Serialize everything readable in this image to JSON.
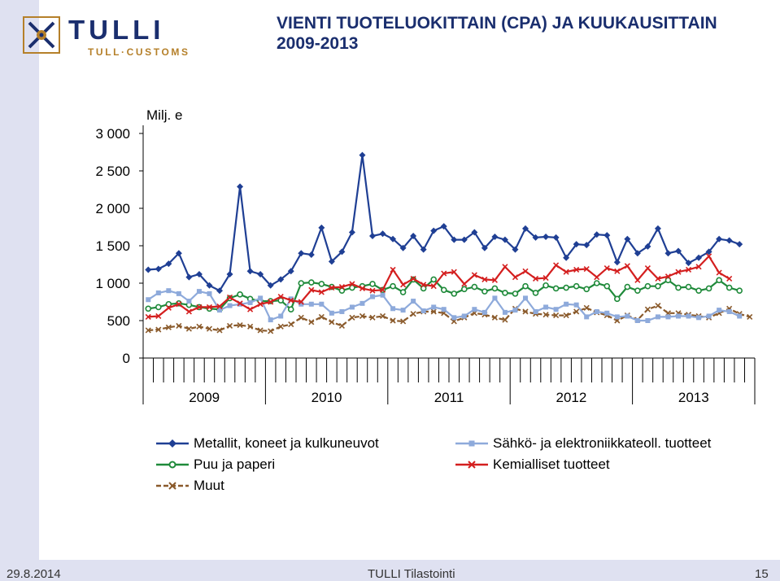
{
  "header": {
    "title": "VIENTI TUOTELUOKITTAIN (CPA) JA KUUKAUSITTAIN 2009-2013",
    "logo_main": "TULLI",
    "logo_sub": "TULL·CUSTOMS"
  },
  "footer": {
    "date": "29.8.2014",
    "center": "TULLI Tilastointi",
    "page": "15"
  },
  "colors": {
    "sidebar": "#dfe1f1",
    "brand_blue": "#1a2e6e",
    "brand_gold": "#b5802a"
  },
  "chart_data": {
    "type": "line",
    "unit_label": "Milj. e",
    "ylim": [
      0,
      3000
    ],
    "yticks": [
      {
        "value": 0,
        "label": "0"
      },
      {
        "value": 500,
        "label": "500"
      },
      {
        "value": 1000,
        "label": "1 000"
      },
      {
        "value": 1500,
        "label": "1 500"
      },
      {
        "value": 2000,
        "label": "2 000"
      },
      {
        "value": 2500,
        "label": "2 500"
      },
      {
        "value": 3000,
        "label": "3 000"
      }
    ],
    "grid": false,
    "legend_position": "bottom",
    "months": 60,
    "x_year_labels": [
      "2009",
      "2010",
      "2011",
      "2012",
      "2013"
    ],
    "series": [
      {
        "name": "Metallit, koneet ja kulkuneuvot",
        "color": "#1f3f94",
        "marker": "diamond",
        "dash": "",
        "values": [
          1180,
          1190,
          1260,
          1400,
          1080,
          1120,
          970,
          900,
          1120,
          2290,
          1160,
          1120,
          970,
          1050,
          1160,
          1400,
          1380,
          1740,
          1290,
          1420,
          1680,
          2710,
          1630,
          1660,
          1590,
          1470,
          1630,
          1450,
          1700,
          1760,
          1580,
          1580,
          1680,
          1470,
          1620,
          1580,
          1450,
          1730,
          1610,
          1620,
          1610,
          1340,
          1520,
          1510,
          1650,
          1640,
          1280,
          1590,
          1400,
          1490,
          1730,
          1400,
          1430,
          1270,
          1340,
          1420,
          1590,
          1570,
          1520,
          0
        ]
      },
      {
        "name": "Puu ja paperi",
        "color": "#1f8a3a",
        "marker": "circle",
        "dash": "",
        "values": [
          660,
          680,
          720,
          730,
          710,
          680,
          660,
          650,
          800,
          850,
          790,
          760,
          760,
          770,
          650,
          1000,
          1010,
          990,
          950,
          900,
          940,
          960,
          990,
          910,
          960,
          880,
          1050,
          930,
          1050,
          910,
          860,
          920,
          950,
          890,
          930,
          870,
          860,
          960,
          870,
          970,
          930,
          940,
          960,
          920,
          1000,
          960,
          790,
          950,
          900,
          960,
          960,
          1040,
          940,
          950,
          900,
          930,
          1040,
          940,
          900,
          0
        ]
      },
      {
        "name": "Muut",
        "color": "#8a5a2b",
        "marker": "x",
        "dash": "6,3",
        "values": [
          370,
          380,
          410,
          430,
          390,
          420,
          390,
          370,
          430,
          440,
          420,
          370,
          360,
          420,
          450,
          540,
          480,
          550,
          480,
          430,
          540,
          560,
          540,
          560,
          500,
          490,
          590,
          620,
          620,
          600,
          490,
          540,
          600,
          580,
          540,
          510,
          660,
          620,
          590,
          580,
          570,
          570,
          620,
          670,
          610,
          570,
          500,
          570,
          510,
          650,
          700,
          600,
          600,
          580,
          560,
          540,
          600,
          660,
          590,
          550
        ]
      },
      {
        "name": "Sähkö- ja elektroniikkateoll. tuotteet",
        "color": "#8eaadb",
        "marker": "square",
        "dash": "",
        "values": [
          780,
          870,
          900,
          860,
          760,
          890,
          860,
          640,
          700,
          720,
          740,
          800,
          510,
          560,
          790,
          720,
          720,
          720,
          600,
          620,
          680,
          730,
          820,
          840,
          660,
          640,
          760,
          630,
          680,
          650,
          540,
          560,
          650,
          610,
          800,
          610,
          640,
          800,
          620,
          680,
          650,
          720,
          710,
          550,
          620,
          600,
          550,
          560,
          500,
          500,
          550,
          550,
          560,
          560,
          540,
          560,
          640,
          620,
          560,
          0
        ]
      },
      {
        "name": "Kemialliset tuotteet",
        "color": "#d41f1f",
        "marker": "x",
        "dash": "",
        "values": [
          550,
          560,
          670,
          720,
          620,
          680,
          680,
          690,
          810,
          730,
          650,
          720,
          750,
          820,
          770,
          750,
          910,
          880,
          940,
          950,
          990,
          930,
          900,
          910,
          1180,
          980,
          1060,
          980,
          960,
          1130,
          1150,
          990,
          1110,
          1050,
          1040,
          1220,
          1080,
          1160,
          1060,
          1070,
          1240,
          1150,
          1180,
          1190,
          1080,
          1200,
          1160,
          1230,
          1040,
          1200,
          1060,
          1090,
          1150,
          1180,
          1220,
          1360,
          1140,
          1060,
          0,
          0
        ]
      }
    ]
  }
}
